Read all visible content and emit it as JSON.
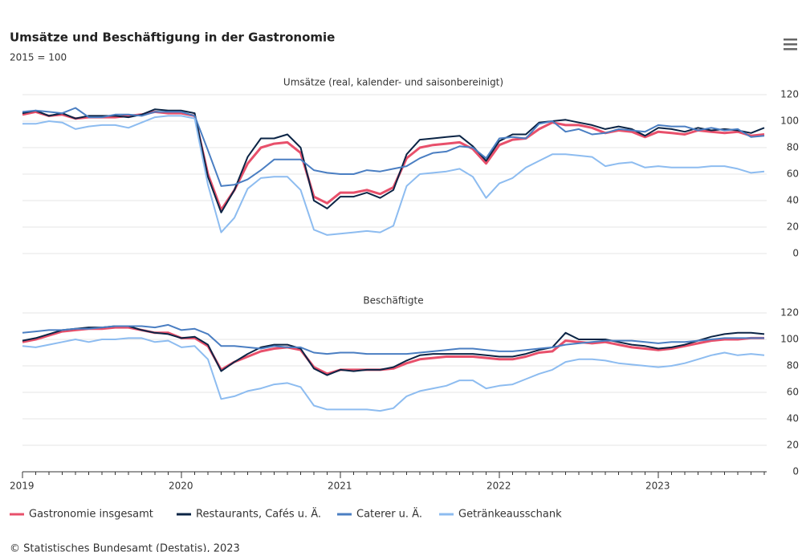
{
  "title": "Umsätze und Beschäftigung in der Gastronomie",
  "subtitle": "2015 = 100",
  "source": "© Statistisches Bundesamt (Destatis), 2023",
  "chart_data": [
    {
      "type": "line",
      "title": "Umsätze (real, kalender- und saisonbereinigt)",
      "ylim": [
        0,
        120
      ],
      "yticks": [
        0,
        20,
        40,
        60,
        80,
        100,
        120
      ],
      "grid": true,
      "series": [
        {
          "name": "Gastronomie insgesamt",
          "color": "#e8506b",
          "values": [
            105,
            107,
            104,
            105,
            102,
            103,
            103,
            103,
            104,
            105,
            107,
            106,
            106,
            104,
            60,
            33,
            48,
            68,
            80,
            83,
            84,
            76,
            43,
            38,
            46,
            46,
            48,
            45,
            50,
            72,
            80,
            82,
            83,
            84,
            79,
            68,
            82,
            86,
            87,
            94,
            99,
            97,
            97,
            95,
            91,
            93,
            92,
            88,
            92,
            91,
            90,
            93,
            92,
            91,
            92,
            89,
            90
          ]
        },
        {
          "name": "Restaurants, Cafés u. Ä.",
          "color": "#0b2445",
          "values": [
            106,
            108,
            104,
            106,
            102,
            104,
            104,
            104,
            103,
            105,
            109,
            108,
            108,
            106,
            58,
            31,
            48,
            73,
            87,
            87,
            90,
            80,
            40,
            34,
            43,
            43,
            46,
            42,
            48,
            75,
            86,
            87,
            88,
            89,
            81,
            70,
            85,
            90,
            90,
            99,
            100,
            101,
            99,
            97,
            94,
            96,
            94,
            89,
            95,
            94,
            92,
            95,
            93,
            94,
            93,
            91,
            95
          ]
        },
        {
          "name": "Caterer u. Ä.",
          "color": "#4a7ec2",
          "values": [
            107,
            108,
            107,
            106,
            110,
            103,
            103,
            105,
            105,
            104,
            107,
            107,
            107,
            104,
            78,
            51,
            52,
            56,
            63,
            71,
            71,
            71,
            63,
            61,
            60,
            60,
            63,
            62,
            64,
            66,
            72,
            76,
            77,
            81,
            80,
            72,
            87,
            88,
            87,
            98,
            100,
            92,
            94,
            90,
            91,
            94,
            93,
            92,
            97,
            96,
            96,
            93,
            95,
            93,
            94,
            88,
            89
          ]
        },
        {
          "name": "Getränkeausschank",
          "color": "#8dbcf0",
          "values": [
            98,
            98,
            100,
            99,
            94,
            96,
            97,
            97,
            95,
            99,
            103,
            104,
            104,
            102,
            52,
            16,
            27,
            49,
            57,
            58,
            58,
            48,
            18,
            14,
            15,
            16,
            17,
            16,
            21,
            51,
            60,
            61,
            62,
            64,
            58,
            42,
            53,
            57,
            65,
            70,
            75,
            75,
            74,
            73,
            66,
            68,
            69,
            65,
            66,
            65,
            65,
            65,
            66,
            66,
            64,
            61,
            62
          ]
        }
      ]
    },
    {
      "type": "line",
      "title": "Beschäftigte",
      "ylim": [
        0,
        120
      ],
      "yticks": [
        0,
        20,
        40,
        60,
        80,
        100,
        120
      ],
      "grid": true,
      "categories": [
        "2019",
        null,
        null,
        null,
        null,
        null,
        null,
        null,
        null,
        null,
        null,
        null,
        "2020",
        null,
        null,
        null,
        null,
        null,
        null,
        null,
        null,
        null,
        null,
        null,
        "2021",
        null,
        null,
        null,
        null,
        null,
        null,
        null,
        null,
        null,
        null,
        null,
        "2022",
        null,
        null,
        null,
        null,
        null,
        null,
        null,
        null,
        null,
        null,
        null,
        "2023",
        null,
        null,
        null,
        null,
        null,
        null,
        null,
        null
      ],
      "series": [
        {
          "color": "#e8506b",
          "values": [
            98,
            100,
            103,
            106,
            107,
            108,
            108,
            109,
            109,
            107,
            105,
            105,
            101,
            101,
            95,
            77,
            83,
            87,
            91,
            93,
            94,
            92,
            79,
            74,
            77,
            77,
            77,
            77,
            78,
            82,
            85,
            86,
            87,
            87,
            87,
            86,
            85,
            85,
            87,
            90,
            91,
            99,
            98,
            97,
            98,
            96,
            94,
            93,
            92,
            93,
            95,
            97,
            99,
            100,
            100,
            101,
            101
          ]
        },
        {
          "color": "#0b2445",
          "values": [
            99,
            101,
            104,
            107,
            108,
            109,
            109,
            110,
            110,
            107,
            105,
            104,
            101,
            102,
            96,
            76,
            83,
            89,
            94,
            96,
            96,
            93,
            78,
            73,
            77,
            76,
            77,
            77,
            79,
            84,
            88,
            89,
            89,
            89,
            89,
            88,
            87,
            87,
            89,
            92,
            94,
            105,
            100,
            100,
            100,
            98,
            96,
            95,
            93,
            94,
            96,
            99,
            102,
            104,
            105,
            105,
            104
          ]
        },
        {
          "color": "#4a7ec2",
          "values": [
            105,
            106,
            107,
            107,
            108,
            108,
            109,
            110,
            110,
            110,
            109,
            111,
            107,
            108,
            104,
            95,
            95,
            94,
            93,
            95,
            94,
            94,
            90,
            89,
            90,
            90,
            89,
            89,
            89,
            89,
            90,
            91,
            92,
            93,
            93,
            92,
            91,
            91,
            92,
            93,
            94,
            96,
            97,
            98,
            99,
            99,
            99,
            98,
            97,
            98,
            98,
            99,
            100,
            101,
            101,
            101,
            101
          ]
        },
        {
          "color": "#8dbcf0",
          "values": [
            95,
            94,
            96,
            98,
            100,
            98,
            100,
            100,
            101,
            101,
            98,
            99,
            94,
            95,
            85,
            55,
            57,
            61,
            63,
            66,
            67,
            64,
            50,
            47,
            47,
            47,
            47,
            46,
            48,
            57,
            61,
            63,
            65,
            69,
            69,
            63,
            65,
            66,
            70,
            74,
            77,
            83,
            85,
            85,
            84,
            82,
            81,
            80,
            79,
            80,
            82,
            85,
            88,
            90,
            88,
            89,
            88
          ]
        }
      ]
    }
  ]
}
